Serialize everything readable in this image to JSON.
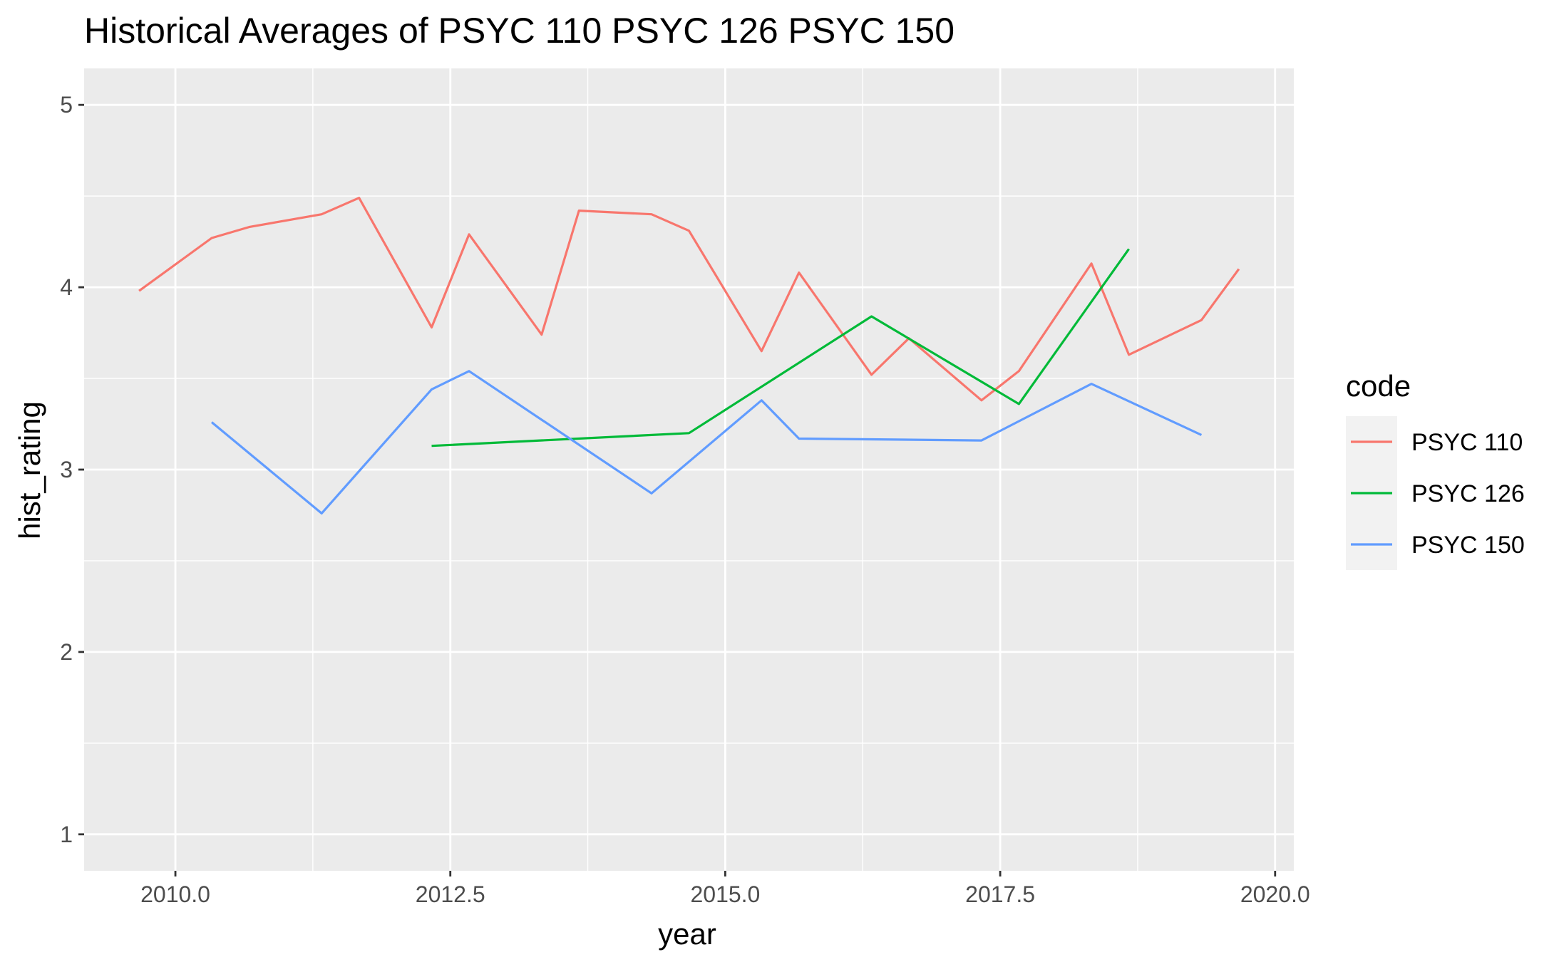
{
  "chart_data": {
    "type": "line",
    "title": "Historical Averages of PSYC 110 PSYC 126 PSYC 150",
    "xlabel": "year",
    "ylabel": "hist_rating",
    "xlim": [
      2009.17,
      2020.17
    ],
    "ylim": [
      0.8,
      5.2
    ],
    "x_ticks": [
      "2010.0",
      "2012.5",
      "2015.0",
      "2017.5",
      "2020.0"
    ],
    "x_tick_values": [
      2010.0,
      2012.5,
      2015.0,
      2017.5,
      2020.0
    ],
    "y_ticks": [
      "1",
      "2",
      "3",
      "4",
      "5"
    ],
    "y_tick_values": [
      1,
      2,
      3,
      4,
      5
    ],
    "grid": true,
    "legend_title": "code",
    "legend_position": "right",
    "series": [
      {
        "name": "PSYC 110",
        "color": "#F8766D",
        "x": [
          2009.67,
          2010.33,
          2010.67,
          2011.33,
          2011.67,
          2012.33,
          2012.67,
          2013.33,
          2013.67,
          2014.33,
          2014.67,
          2015.33,
          2015.67,
          2016.33,
          2016.67,
          2017.33,
          2017.67,
          2018.33,
          2018.67,
          2019.33,
          2019.67
        ],
        "y": [
          3.98,
          4.27,
          4.33,
          4.4,
          4.49,
          3.78,
          4.29,
          3.74,
          4.42,
          4.4,
          4.31,
          3.65,
          4.08,
          3.52,
          3.72,
          3.38,
          3.54,
          4.13,
          3.63,
          3.82,
          4.1
        ]
      },
      {
        "name": "PSYC 126",
        "color": "#00BA38",
        "x": [
          2012.33,
          2014.67,
          2016.33,
          2017.67,
          2018.67
        ],
        "y": [
          3.13,
          3.2,
          3.84,
          3.36,
          4.21
        ]
      },
      {
        "name": "PSYC 150",
        "color": "#619CFF",
        "x": [
          2010.33,
          2011.33,
          2012.33,
          2012.67,
          2014.33,
          2015.33,
          2015.67,
          2017.33,
          2018.33,
          2019.33
        ],
        "y": [
          3.26,
          2.76,
          3.44,
          3.54,
          2.87,
          3.38,
          3.17,
          3.16,
          3.47,
          3.19
        ]
      }
    ]
  }
}
